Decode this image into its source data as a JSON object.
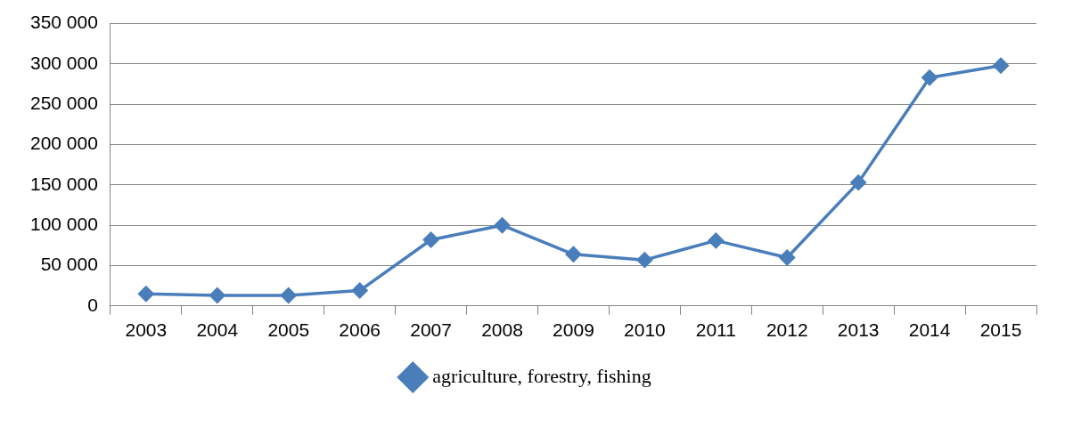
{
  "chart_data": {
    "type": "line",
    "categories": [
      "2003",
      "2004",
      "2005",
      "2006",
      "2007",
      "2008",
      "2009",
      "2010",
      "2011",
      "2012",
      "2013",
      "2014",
      "2015"
    ],
    "series": [
      {
        "name": "agriculture, forestry, fishing",
        "color": "#4a7ebb",
        "values": [
          15000,
          13000,
          13000,
          19000,
          82000,
          100000,
          64000,
          57000,
          81000,
          60000,
          153000,
          283000,
          298000
        ]
      }
    ],
    "ylim": [
      0,
      350000
    ],
    "yticks": [
      0,
      {
        "value": 50000,
        "label": "50 000"
      },
      {
        "value": 100000,
        "label": "100 000"
      },
      {
        "value": 150000,
        "label": "150 000"
      },
      {
        "value": 200000,
        "label": "200 000"
      },
      {
        "value": 250000,
        "label": "250 000"
      },
      {
        "value": 300000,
        "label": "300 000"
      },
      {
        "value": 350000,
        "label": "350 000"
      }
    ],
    "grid": "y",
    "legend": "bottom",
    "marker": "diamond",
    "line_style": "solid"
  }
}
